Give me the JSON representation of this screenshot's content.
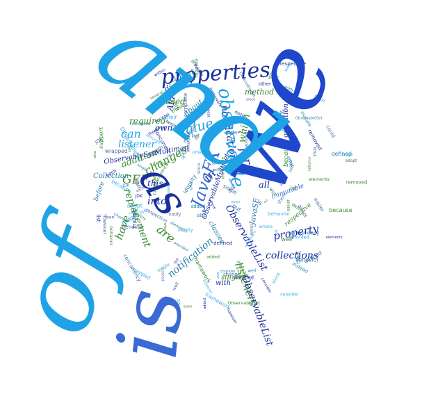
{
  "words": {
    "and": "and",
    "we": "we",
    "of": "of",
    "is": "is",
    "as": "as",
    "properties": "properties",
    "observable": "observable",
    "javafx": "JavaFX",
    "listeners": "listeners",
    "observablelist": "ObservableList",
    "collections": "collections",
    "property": "property",
    "changes": "changes",
    "notification": "notification",
    "replacement": "replacement",
    "notifications": "notifications",
    "value": "value",
    "which": "which",
    "for": "for",
    "in": "in",
    "can": "can",
    "listener": "listener",
    "gef": "GEF",
    "into": "into",
    "are": "are",
    "have": "have",
    "not": "not",
    "this": "this",
    "all": "all",
    "about": "about",
    "directly": "directly",
    "api": "API",
    "method": "method",
    "used": "used",
    "required": "required",
    "own": "own",
    "addition": "addition",
    "collection": "Collection",
    "observablesetmultimap": "ObservableSetMultimap",
    "observablemultiset": "ObservableMultiset",
    "immutable": "immutable",
    "javase": "JavaSE",
    "respective": "respective",
    "single": "single",
    "with": "with",
    "operation": "operation",
    "list": "list",
    "because": "because",
    "classes": "classes",
    "support": "support",
    "before": "before",
    "elements": "elements",
    "change": "change",
    "complete": "complete",
    "jdk": "JDK",
    "identity": "identity",
    "these": "these",
    "also": "also",
    "so": "so",
    "but": "but",
    "well": "well",
    "multiple": "multiple",
    "consider": "consider",
    "several": "several",
    "provided": "provided",
    "observableset": "ObservableSet",
    "concurrency": "concurrency",
    "where": "where",
    "adopt": "adopt",
    "notify": "notify",
    "behavior": "behavior",
    "defined": "defined",
    "framework": "framework",
    "could": "could",
    "since": "since",
    "instead": "instead",
    "added": "added",
    "removed": "removed",
    "however": "however",
    "their": "their",
    "will": "will",
    "within": "within",
    "even": "even",
    "wrapped": "wrapped",
    "own2": "own",
    "easier": "easier",
    "thus": "thus",
    "other": "other",
    "each": "each"
  },
  "palette": {
    "sky": "#1fa3e6",
    "sky_light": "#3bb0ea",
    "royal": "#1f47cc",
    "navy": "#1a2f9e",
    "steel": "#3a6ad4",
    "green": "#3b8a2f",
    "teal": "#2a7fa8",
    "grey_blue": "#4a6fa5"
  }
}
